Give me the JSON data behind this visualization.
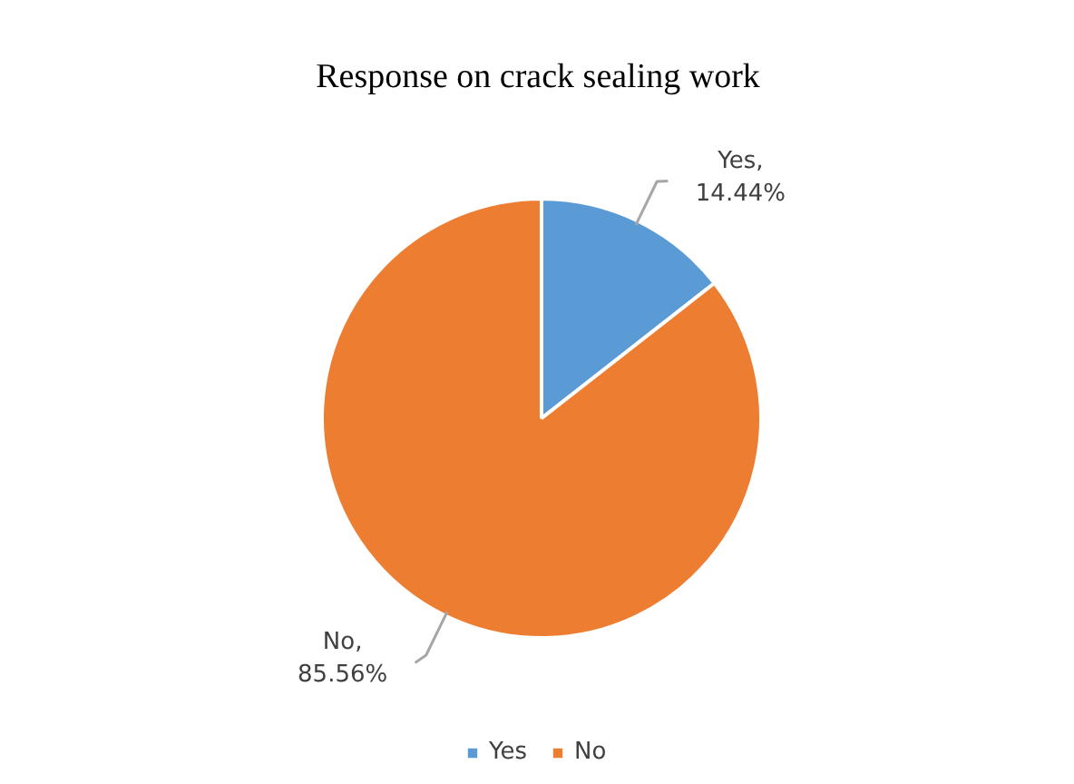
{
  "chart_data": {
    "type": "pie",
    "title": "Response on crack sealing work",
    "categories": [
      "Yes",
      "No"
    ],
    "values": [
      14.44,
      85.56
    ],
    "colors": [
      "#5b9bd5",
      "#ed7d31"
    ],
    "value_labels": [
      "Yes, 14.44%",
      "No, 85.56%"
    ],
    "legend": "bottom"
  }
}
